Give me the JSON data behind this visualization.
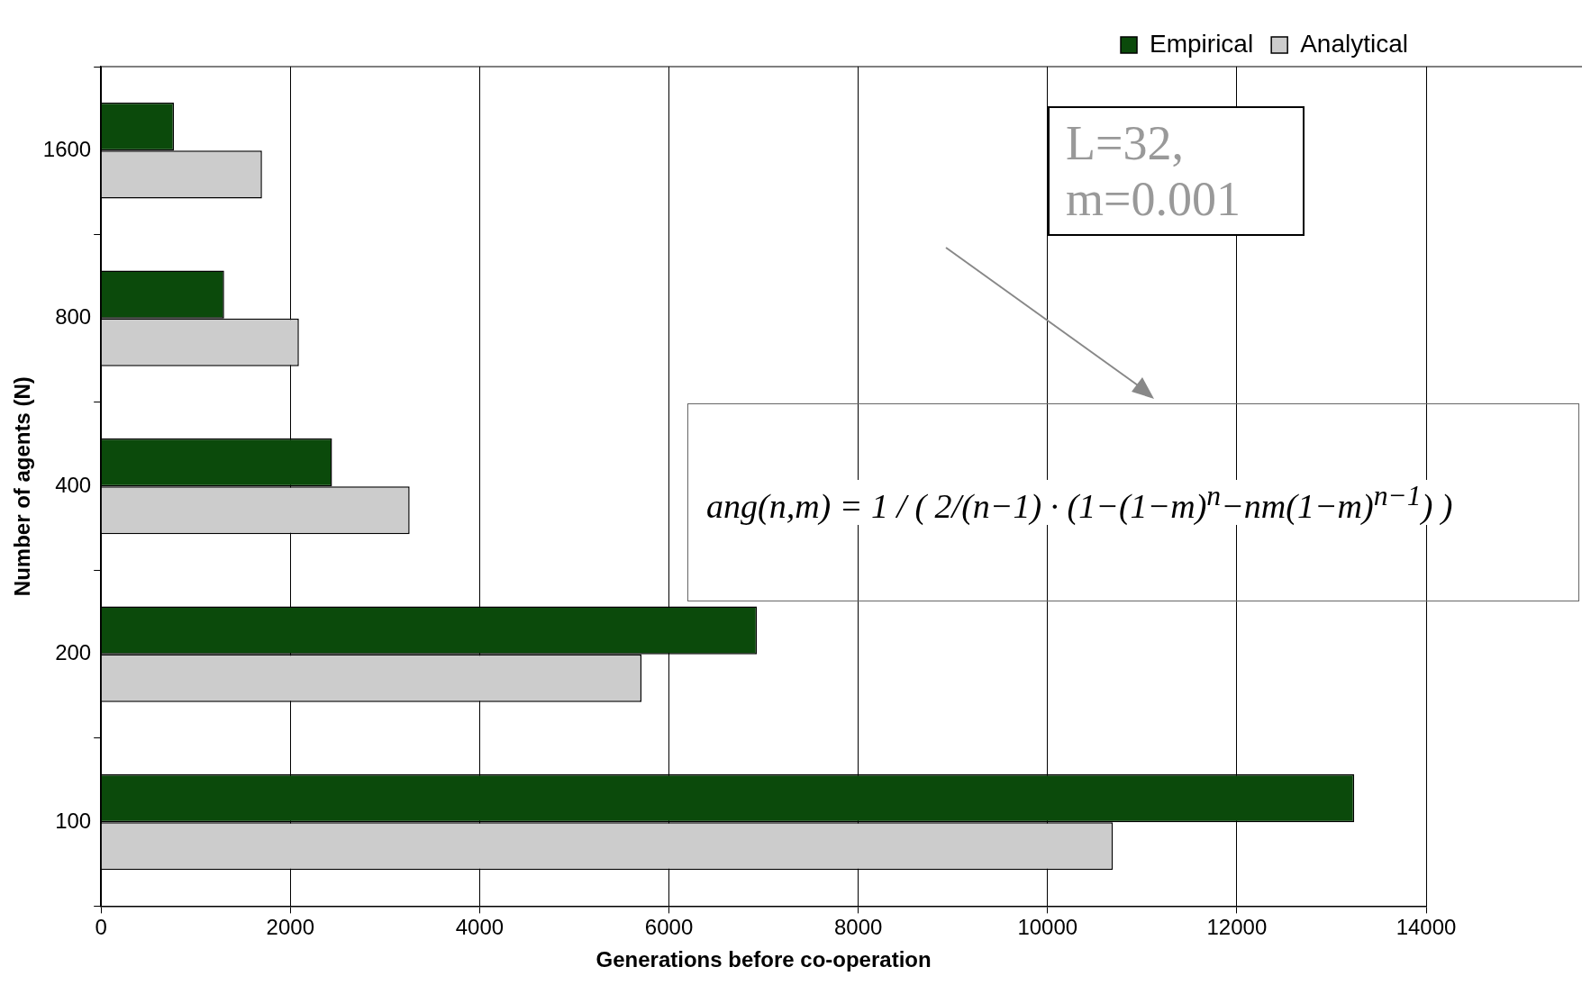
{
  "chart_data": {
    "type": "bar",
    "orientation": "horizontal",
    "xlabel": "Generations before co-operation",
    "ylabel": "Number of agents (N)",
    "categories": [
      "1600",
      "800",
      "400",
      "200",
      "100"
    ],
    "series": [
      {
        "name": "Empirical",
        "color": "#0b4a0b",
        "values": [
          770,
          1300,
          2440,
          6930,
          13240
        ]
      },
      {
        "name": "Analytical",
        "color": "#cccccc",
        "values": [
          1700,
          2090,
          3260,
          5710,
          10690
        ]
      }
    ],
    "xlim": [
      0,
      14000
    ],
    "xticks": [
      0,
      2000,
      4000,
      6000,
      8000,
      10000,
      12000,
      14000
    ],
    "grid": "x",
    "legend": "top right",
    "annotations": [
      "L=32,\nm=0.001",
      "ang(n,m) = 1 / ( 2/(n−1) · (1−(1−m)$^{n}$−nm(1−m)$^{n−1}$) )"
    ]
  }
}
